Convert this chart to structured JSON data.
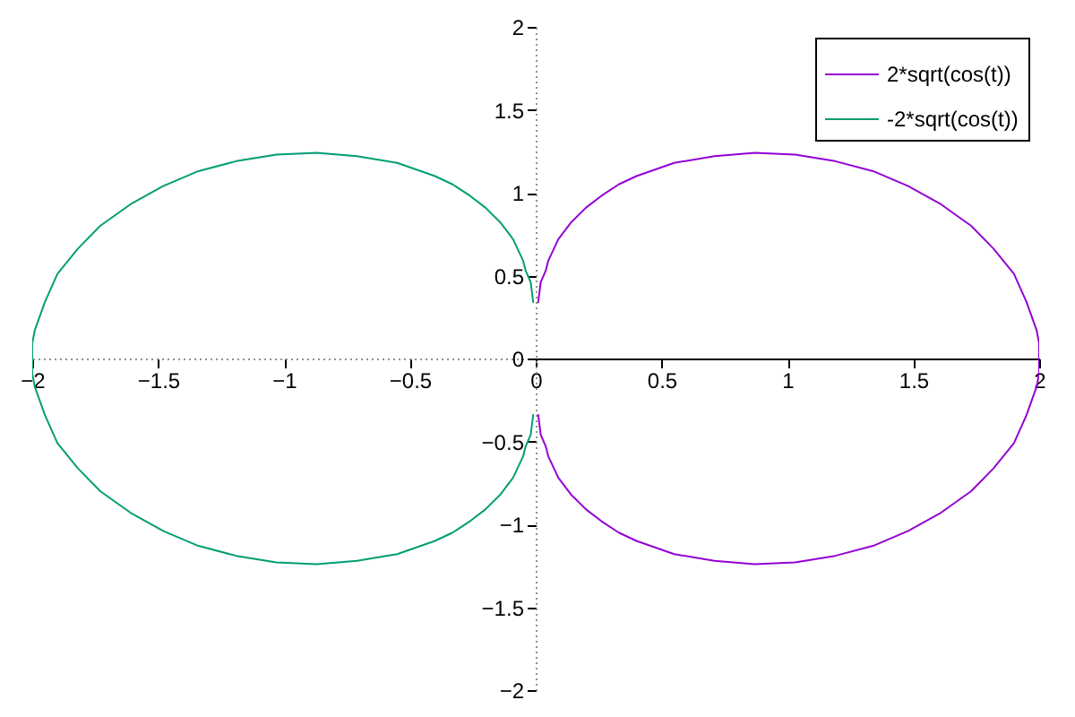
{
  "chart_data": {
    "type": "line",
    "series": [
      {
        "name": "2*sqrt(cos(t))",
        "color": "#9400d3",
        "x": [
          2.0,
          2.0,
          1.99,
          1.95,
          1.9,
          1.82,
          1.73,
          1.61,
          1.48,
          1.34,
          1.19,
          1.03,
          0.87,
          0.71,
          0.55,
          0.4,
          0.33,
          0.26,
          0.2,
          0.14,
          0.09,
          0.05,
          0.04,
          0.02,
          0.01,
          null,
          0.01,
          0.02,
          0.04,
          0.05,
          0.09,
          0.14,
          0.2,
          0.26,
          0.33,
          0.4,
          0.55,
          0.71,
          0.87,
          1.03,
          1.19,
          1.34,
          1.48,
          1.61,
          1.73,
          1.82,
          1.9,
          1.95,
          1.99,
          2.0,
          2.0
        ],
        "values": [
          0,
          0.09,
          0.17,
          0.34,
          0.51,
          0.66,
          0.8,
          0.93,
          1.04,
          1.13,
          1.19,
          1.23,
          1.24,
          1.22,
          1.18,
          1.1,
          1.05,
          0.98,
          0.91,
          0.82,
          0.72,
          0.59,
          0.53,
          0.46,
          0.34,
          null,
          -0.34,
          -0.46,
          -0.53,
          -0.59,
          -0.72,
          -0.82,
          -0.91,
          -0.98,
          -1.05,
          -1.1,
          -1.18,
          -1.22,
          -1.24,
          -1.23,
          -1.19,
          -1.13,
          -1.04,
          -0.93,
          -0.8,
          -0.66,
          -0.51,
          -0.34,
          -0.17,
          -0.09,
          0
        ]
      },
      {
        "name": "-2*sqrt(cos(t))",
        "color": "#009e73",
        "x": [
          -2.0,
          -2.0,
          -1.99,
          -1.95,
          -1.9,
          -1.82,
          -1.73,
          -1.61,
          -1.48,
          -1.34,
          -1.19,
          -1.03,
          -0.87,
          -0.71,
          -0.55,
          -0.4,
          -0.33,
          -0.26,
          -0.2,
          -0.14,
          -0.09,
          -0.05,
          -0.04,
          -0.02,
          -0.01,
          null,
          -0.01,
          -0.02,
          -0.04,
          -0.05,
          -0.09,
          -0.14,
          -0.2,
          -0.26,
          -0.33,
          -0.4,
          -0.55,
          -0.71,
          -0.87,
          -1.03,
          -1.19,
          -1.34,
          -1.48,
          -1.61,
          -1.73,
          -1.82,
          -1.9,
          -1.95,
          -1.99,
          -2.0,
          -2.0
        ],
        "values": [
          0,
          -0.09,
          -0.17,
          -0.34,
          -0.51,
          -0.66,
          -0.8,
          -0.93,
          -1.04,
          -1.13,
          -1.19,
          -1.23,
          -1.24,
          -1.22,
          -1.18,
          -1.1,
          -1.05,
          -0.98,
          -0.91,
          -0.82,
          -0.72,
          -0.59,
          -0.53,
          -0.46,
          -0.34,
          null,
          0.34,
          0.46,
          0.53,
          0.59,
          0.72,
          0.82,
          0.91,
          0.98,
          1.05,
          1.1,
          1.18,
          1.22,
          1.24,
          1.23,
          1.19,
          1.13,
          1.04,
          0.93,
          0.8,
          0.66,
          0.51,
          0.34,
          0.17,
          0.09,
          0
        ]
      }
    ],
    "xlim": [
      -2,
      2
    ],
    "ylim": [
      -2,
      2
    ],
    "xticks": [
      -2,
      -1.5,
      -1,
      -0.5,
      0,
      0.5,
      1,
      1.5,
      2
    ],
    "yticks": [
      -2,
      -1.5,
      -1,
      -0.5,
      0,
      0.5,
      1,
      1.5,
      2
    ],
    "legend": "top right",
    "line_style": "solid"
  }
}
